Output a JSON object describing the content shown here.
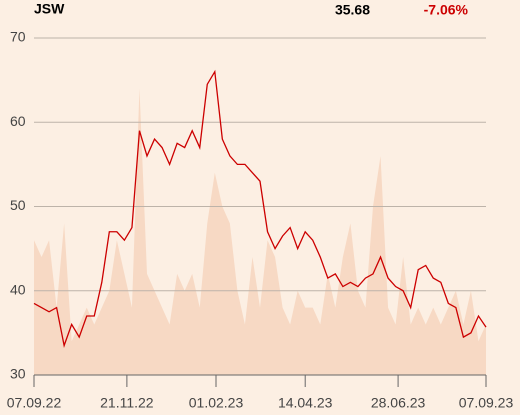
{
  "chart_data": {
    "type": "line",
    "title": "JSW",
    "last_price": 35.68,
    "change": -7.06,
    "change_label": "-7.06%",
    "xlim": [
      0,
      60
    ],
    "xticks": [
      {
        "value": 0,
        "label": "07.09.22"
      },
      {
        "value": 12.33,
        "label": "21.11.22"
      },
      {
        "value": 24.16,
        "label": "01.02.23"
      },
      {
        "value": 36,
        "label": "14.04.23"
      },
      {
        "value": 48.33,
        "label": "28.06.23"
      },
      {
        "value": 60,
        "label": "07.09.23"
      }
    ],
    "ylim": [
      30,
      70
    ],
    "yticks": [
      30,
      40,
      50,
      60,
      70
    ],
    "y2lim": [
      0,
      100
    ],
    "grid": true,
    "series": [
      {
        "color": "#cc0000",
        "values": [
          38.5,
          38,
          37.5,
          38,
          33.5,
          36,
          34.5,
          37,
          37,
          41,
          47,
          47,
          46,
          47.5,
          59,
          56,
          58,
          57,
          55,
          57.5,
          57,
          59,
          57,
          64.5,
          66,
          58,
          56,
          55,
          55,
          54,
          53,
          47,
          45,
          46.5,
          47.5,
          45,
          47,
          46,
          44,
          41.5,
          42,
          40.5,
          41,
          40.5,
          41.5,
          42,
          44,
          41.5,
          40.5,
          40,
          38,
          42.5,
          43,
          41.5,
          41,
          38.5,
          38,
          34.5,
          35,
          37,
          35.68
        ]
      },
      {
        "type": "area",
        "axis": "y2",
        "color": "#f7d9c4",
        "values": [
          40,
          35,
          40,
          20,
          45,
          10,
          15,
          20,
          15,
          20,
          25,
          40,
          30,
          20,
          85,
          30,
          25,
          20,
          15,
          30,
          25,
          30,
          20,
          45,
          60,
          50,
          45,
          25,
          15,
          35,
          20,
          40,
          35,
          20,
          15,
          25,
          20,
          20,
          15,
          30,
          20,
          35,
          45,
          25,
          20,
          50,
          65,
          20,
          15,
          35,
          15,
          20,
          15,
          20,
          15,
          20,
          25,
          15,
          25,
          10,
          15
        ]
      }
    ]
  }
}
